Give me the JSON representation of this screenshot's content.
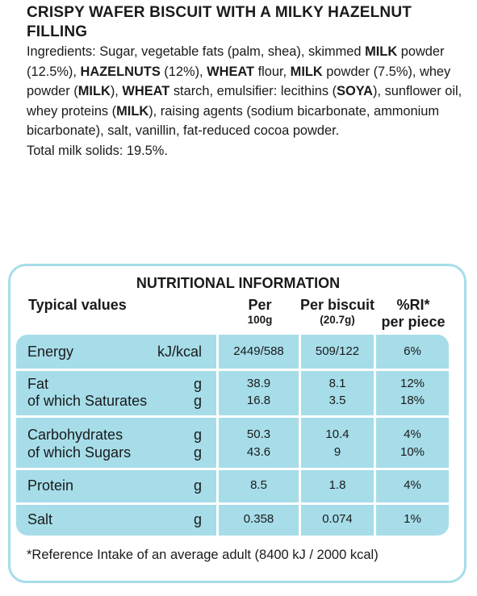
{
  "title": "CRISPY WAFER BISCUIT  WITH A MILKY HAZELNUT FILLING",
  "ingredients_parts": [
    {
      "t": "Ingredients: Sugar, vegetable fats (palm, shea), skimmed ",
      "b": false
    },
    {
      "t": "MILK",
      "b": true
    },
    {
      "t": " powder (12.5%), ",
      "b": false
    },
    {
      "t": "HAZELNUTS",
      "b": true
    },
    {
      "t": " (12%), ",
      "b": false
    },
    {
      "t": "WHEAT",
      "b": true
    },
    {
      "t": " flour, ",
      "b": false
    },
    {
      "t": "MILK",
      "b": true
    },
    {
      "t": " powder (7.5%), whey powder (",
      "b": false
    },
    {
      "t": "MILK",
      "b": true
    },
    {
      "t": "), ",
      "b": false
    },
    {
      "t": "WHEAT",
      "b": true
    },
    {
      "t": " starch, emulsifier: lecithins (",
      "b": false
    },
    {
      "t": "SOYA",
      "b": true
    },
    {
      "t": "), sunflower oil, whey proteins (",
      "b": false
    },
    {
      "t": "MILK",
      "b": true
    },
    {
      "t": "), raising agents (sodium bicarbonate, ammonium bicarbonate), salt, vanillin, fat-reduced cocoa powder.",
      "b": false
    }
  ],
  "milk_solids": "Total milk solids: 19.5%.",
  "nutrition": {
    "heading": "NUTRITIONAL INFORMATION",
    "col_label": "Typical values",
    "col_per": "Per",
    "col_per_sub": "100g",
    "col_biscuit": "Per biscuit",
    "col_biscuit_sub": "(20.7g)",
    "col_ri": "%RI*",
    "col_ri_sub": "per piece",
    "rows": {
      "energy": {
        "label": "Energy",
        "unit": "kJ/kcal",
        "per100": "2449/588",
        "biscuit": "509/122",
        "ri": "6%"
      },
      "fat": {
        "label": "Fat",
        "unit": "g",
        "per100": "38.9",
        "biscuit": "8.1",
        "ri": "12%"
      },
      "saturates": {
        "label": "of which Saturates",
        "unit": "g",
        "per100": "16.8",
        "biscuit": "3.5",
        "ri": "18%"
      },
      "carbs": {
        "label": "Carbohydrates",
        "unit": "g",
        "per100": "50.3",
        "biscuit": "10.4",
        "ri": "4%"
      },
      "sugars": {
        "label": "of which Sugars",
        "unit": "g",
        "per100": "43.6",
        "biscuit": "9",
        "ri": "10%"
      },
      "protein": {
        "label": "Protein",
        "unit": "g",
        "per100": "8.5",
        "biscuit": "1.8",
        "ri": "4%"
      },
      "salt": {
        "label": "Salt",
        "unit": "g",
        "per100": "0.358",
        "biscuit": "0.074",
        "ri": "1%"
      }
    },
    "footnote": "*Reference Intake of an average adult (8400 kJ / 2000 kcal)",
    "band_color": "#a6dde9"
  }
}
